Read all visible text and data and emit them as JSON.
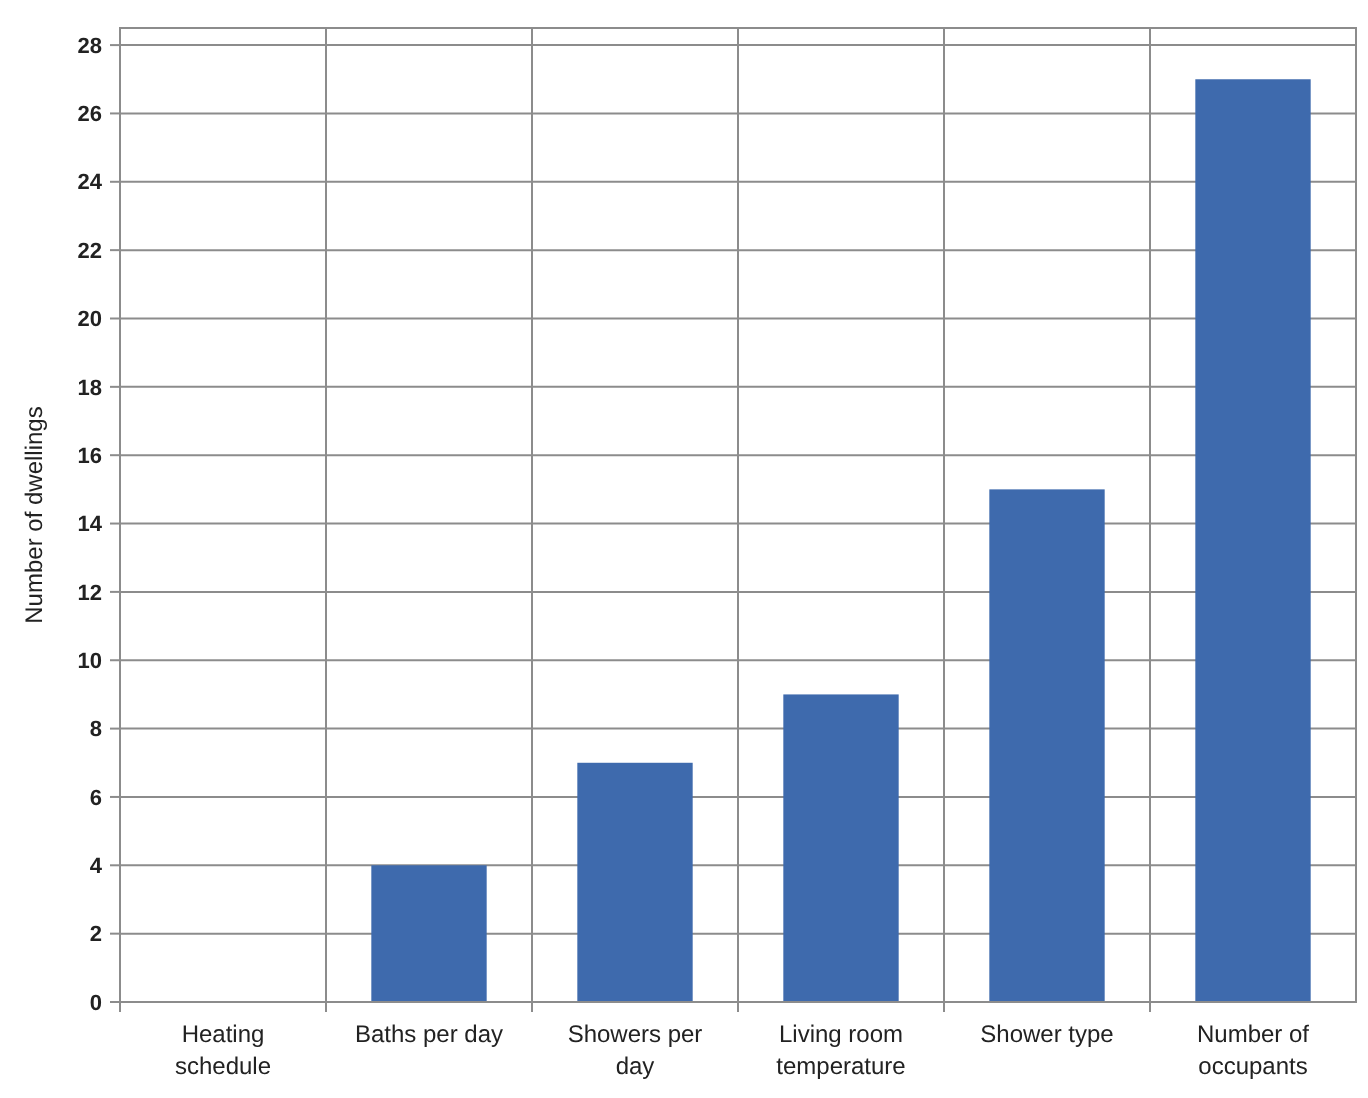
{
  "chart_data": {
    "type": "bar",
    "ylabel": "Number of dwellings",
    "categories": [
      "Heating schedule",
      "Baths per day",
      "Showers per day",
      "Living room temperature",
      "Shower type",
      "Number of occupants"
    ],
    "values": [
      0,
      4,
      7,
      9,
      15,
      27
    ],
    "color": "#3e6aad",
    "ylim": [
      0,
      28.5
    ],
    "yticks": [
      0,
      2,
      4,
      6,
      8,
      10,
      12,
      14,
      16,
      18,
      20,
      22,
      24,
      26,
      28
    ],
    "grid": true
  }
}
